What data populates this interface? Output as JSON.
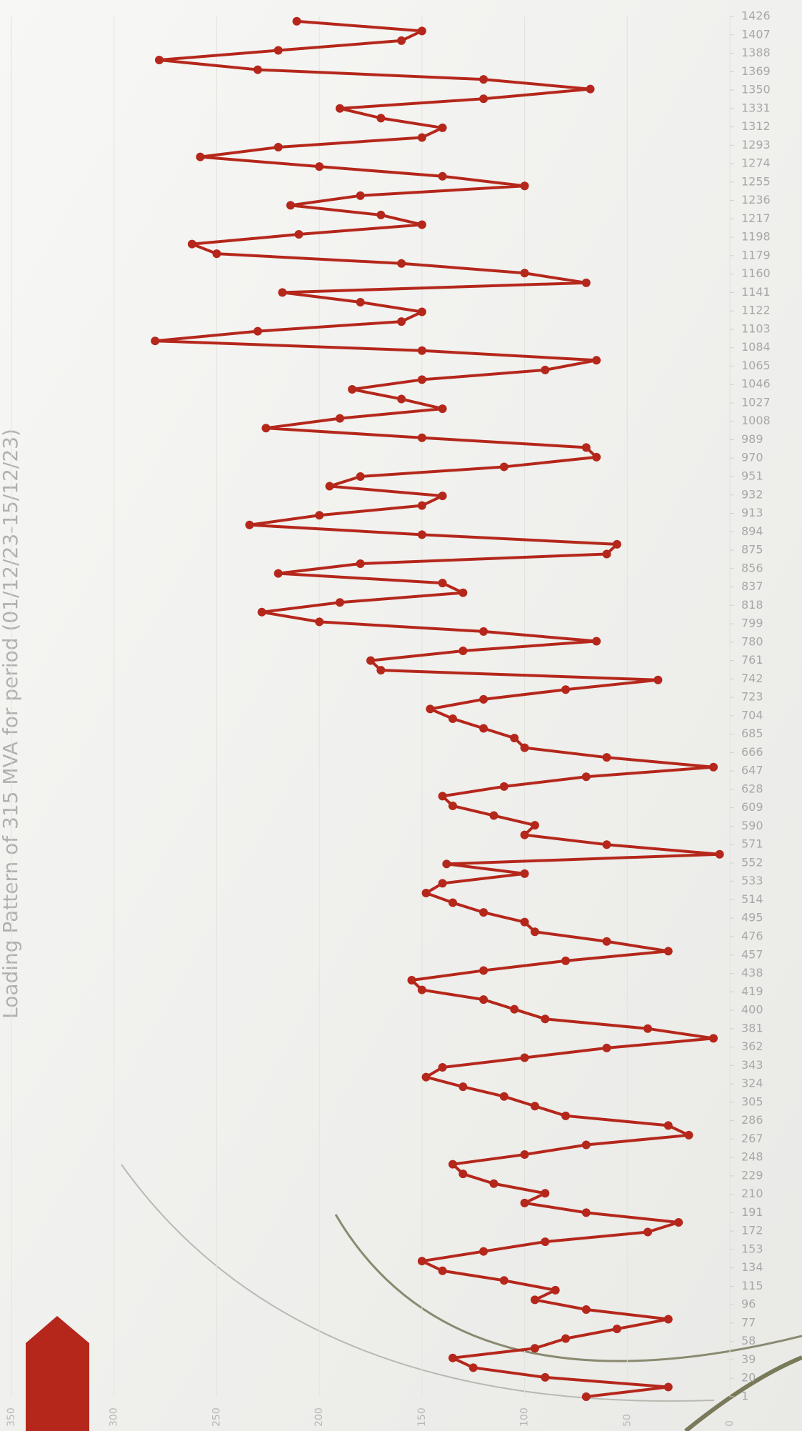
{
  "chart_data": {
    "type": "line",
    "title": "Loading Pattern of 315 MVA for period (01/12/23-15/12/23)",
    "x": [
      1,
      11,
      21,
      31,
      41,
      51,
      61,
      71,
      81,
      91,
      101,
      111,
      121,
      131,
      141,
      151,
      161,
      171,
      181,
      191,
      201,
      211,
      221,
      231,
      241,
      251,
      261,
      271,
      281,
      291,
      301,
      311,
      321,
      331,
      341,
      351,
      361,
      371,
      381,
      391,
      401,
      411,
      421,
      431,
      441,
      451,
      461,
      471,
      481,
      491,
      501,
      511,
      521,
      531,
      541,
      551,
      561,
      571,
      581,
      591,
      601,
      611,
      621,
      631,
      641,
      651,
      661,
      671,
      681,
      691,
      701,
      711,
      721,
      731,
      741,
      751,
      761,
      771,
      781,
      791,
      801,
      811,
      821,
      831,
      841,
      851,
      861,
      871,
      881,
      891,
      901,
      911,
      921,
      931,
      941,
      951,
      961,
      971,
      981,
      991,
      1001,
      1011,
      1021,
      1031,
      1041,
      1051,
      1061,
      1071,
      1081,
      1091,
      1101,
      1111,
      1121,
      1131,
      1141,
      1151,
      1161,
      1171,
      1181,
      1191,
      1201,
      1211,
      1221,
      1231,
      1241,
      1251,
      1261,
      1271,
      1281,
      1291,
      1301,
      1311,
      1321,
      1331,
      1341,
      1351,
      1361,
      1371,
      1381,
      1391,
      1401,
      1411,
      1421
    ],
    "series": [
      {
        "color": "#b5271b",
        "values": [
          70,
          30,
          90,
          125,
          135,
          95,
          80,
          55,
          30,
          70,
          95,
          85,
          110,
          140,
          150,
          120,
          90,
          40,
          25,
          70,
          100,
          90,
          115,
          130,
          135,
          100,
          70,
          20,
          30,
          80,
          95,
          110,
          130,
          148,
          140,
          100,
          60,
          8,
          40,
          90,
          105,
          120,
          150,
          155,
          120,
          80,
          30,
          60,
          95,
          100,
          120,
          135,
          148,
          140,
          100,
          138,
          5,
          60,
          100,
          95,
          115,
          135,
          140,
          110,
          70,
          8,
          60,
          100,
          105,
          120,
          135,
          146,
          120,
          80,
          35,
          170,
          175,
          130,
          65,
          120,
          200,
          228,
          190,
          130,
          140,
          220,
          180,
          60,
          55,
          150,
          234,
          200,
          150,
          140,
          195,
          180,
          110,
          65,
          70,
          150,
          226,
          190,
          140,
          160,
          184,
          150,
          90,
          65,
          150,
          280,
          230,
          160,
          150,
          180,
          218,
          70,
          100,
          160,
          250,
          262,
          210,
          150,
          170,
          214,
          180,
          100,
          140,
          200,
          258,
          220,
          150,
          140,
          170,
          190,
          120,
          68,
          120,
          230,
          278,
          220,
          160,
          150,
          211
        ]
      }
    ],
    "xlim": [
      1,
      1426
    ],
    "xticks": [
      1,
      20,
      39,
      58,
      77,
      96,
      115,
      134,
      153,
      172,
      191,
      210,
      229,
      248,
      267,
      286,
      305,
      324,
      343,
      362,
      381,
      400,
      419,
      438,
      457,
      476,
      495,
      514,
      533,
      552,
      571,
      590,
      609,
      628,
      647,
      666,
      685,
      704,
      723,
      742,
      761,
      780,
      799,
      818,
      837,
      856,
      875,
      894,
      913,
      932,
      951,
      970,
      989,
      1008,
      1027,
      1046,
      1065,
      1084,
      1103,
      1122,
      1141,
      1160,
      1179,
      1198,
      1217,
      1236,
      1255,
      1274,
      1293,
      1312,
      1331,
      1350,
      1369,
      1388,
      1407,
      1426
    ],
    "ylim": [
      0,
      350
    ],
    "yticks": [
      0,
      50,
      100,
      150,
      200,
      250,
      300,
      350
    ],
    "grid": true
  }
}
